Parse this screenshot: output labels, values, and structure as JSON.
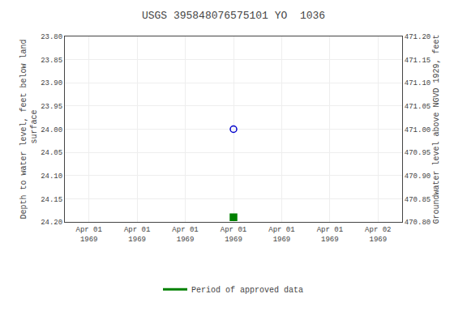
{
  "chart_data": {
    "type": "scatter",
    "title": "USGS 395848076575101 YO  1036",
    "y_label": "Depth to water level, feet below land\n surface",
    "y2_label": "Groundwater level above NGVD 1929, feet",
    "categories": [
      "Apr 01\n1969",
      "Apr 01\n1969",
      "Apr 01\n1969",
      "Apr 01\n1969",
      "Apr 01\n1969",
      "Apr 01\n1969",
      "Apr 02\n1969"
    ],
    "series": [
      {
        "name": "Period of approved data",
        "type": "line",
        "color": "#008000",
        "values": [
          null,
          null,
          null,
          null,
          null,
          null,
          null
        ]
      },
      {
        "type": "scatter",
        "marker": "circle-open",
        "color": "#0000cc",
        "values": [
          null,
          null,
          null,
          24.0,
          null,
          null,
          null
        ]
      },
      {
        "type": "scatter",
        "marker": "square",
        "color": "#008000",
        "values": [
          null,
          null,
          null,
          24.19,
          null,
          null,
          null
        ]
      }
    ],
    "ylim": [
      24.2,
      23.8
    ],
    "yticks": [
      {
        "value": 23.8,
        "label": "23.80"
      },
      {
        "value": 23.85,
        "label": "23.85"
      },
      {
        "value": 23.9,
        "label": "23.90"
      },
      {
        "value": 23.95,
        "label": "23.95"
      },
      {
        "value": 24.0,
        "label": "24.00"
      },
      {
        "value": 24.05,
        "label": "24.05"
      },
      {
        "value": 24.1,
        "label": "24.10"
      },
      {
        "value": 24.15,
        "label": "24.15"
      },
      {
        "value": 24.2,
        "label": "24.20"
      }
    ],
    "y2lim": [
      470.8,
      471.2
    ],
    "y2ticks": [
      {
        "value": 470.8,
        "label": "470.80"
      },
      {
        "value": 470.85,
        "label": "470.85"
      },
      {
        "value": 470.9,
        "label": "470.90"
      },
      {
        "value": 470.95,
        "label": "470.95"
      },
      {
        "value": 471.0,
        "label": "471.00"
      },
      {
        "value": 471.05,
        "label": "471.05"
      },
      {
        "value": 471.1,
        "label": "471.10"
      },
      {
        "value": 471.15,
        "label": "471.15"
      },
      {
        "value": 471.2,
        "label": "471.20"
      }
    ],
    "grid": true,
    "legend": "bottom"
  }
}
